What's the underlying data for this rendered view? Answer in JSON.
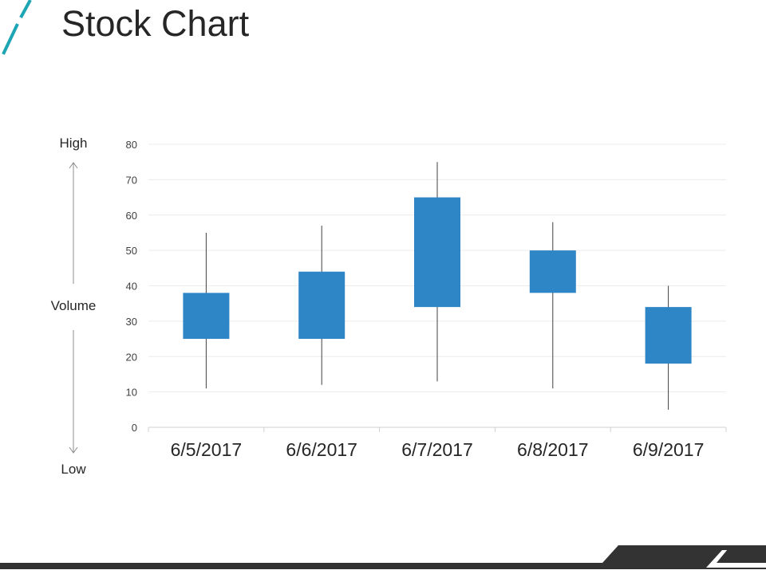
{
  "slide": {
    "title": "Stock Chart",
    "side_labels": {
      "high": "High",
      "volume": "Volume",
      "low": "Low"
    },
    "colors": {
      "accent": "#1ea5b3",
      "box": "#2e86c6",
      "wick": "#404040",
      "footer": "#333333"
    }
  },
  "chart_data": {
    "type": "candlestick",
    "categories": [
      "6/5/2017",
      "6/6/2017",
      "6/7/2017",
      "6/8/2017",
      "6/9/2017"
    ],
    "series": [
      {
        "open": 25,
        "high": 55,
        "low": 11,
        "close": 38
      },
      {
        "open": 25,
        "high": 57,
        "low": 12,
        "close": 44
      },
      {
        "open": 34,
        "high": 75,
        "low": 13,
        "close": 65
      },
      {
        "open": 38,
        "high": 58,
        "low": 11,
        "close": 50
      },
      {
        "open": 18,
        "high": 40,
        "low": 5,
        "close": 34
      }
    ],
    "yticks": [
      0,
      10,
      20,
      30,
      40,
      50,
      60,
      70,
      80
    ],
    "ylim": [
      0,
      80
    ],
    "grid": true,
    "legend": "none"
  }
}
